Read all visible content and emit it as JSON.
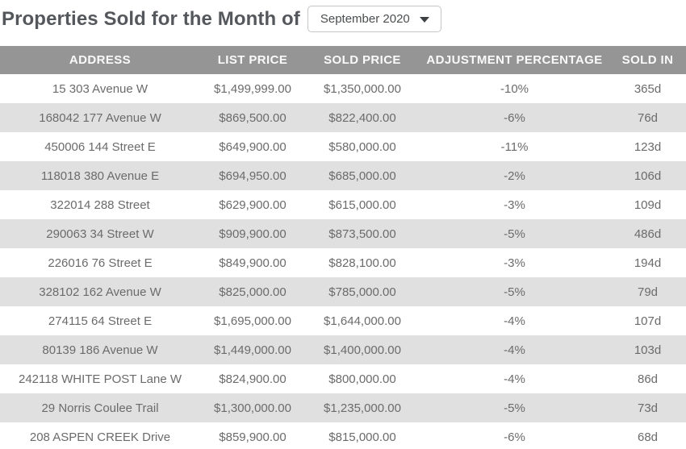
{
  "page": {
    "title": "Properties Sold for the Month of"
  },
  "month_selector": {
    "selected_value": "September 2020",
    "icon": "chevron-down-icon"
  },
  "table": {
    "columns": [
      "ADDRESS",
      "LIST PRICE",
      "SOLD PRICE",
      "ADJUSTMENT PERCENTAGE",
      "SOLD IN"
    ],
    "rows": [
      {
        "address": "15 303 Avenue W",
        "list_price": "$1,499,999.00",
        "sold_price": "$1,350,000.00",
        "adjustment_percentage": "-10%",
        "sold_in": "365d"
      },
      {
        "address": "168042 177 Avenue W",
        "list_price": "$869,500.00",
        "sold_price": "$822,400.00",
        "adjustment_percentage": "-6%",
        "sold_in": "76d"
      },
      {
        "address": "450006 144 Street E",
        "list_price": "$649,900.00",
        "sold_price": "$580,000.00",
        "adjustment_percentage": "-11%",
        "sold_in": "123d"
      },
      {
        "address": "118018 380 Avenue E",
        "list_price": "$694,950.00",
        "sold_price": "$685,000.00",
        "adjustment_percentage": "-2%",
        "sold_in": "106d"
      },
      {
        "address": "322014 288 Street",
        "list_price": "$629,900.00",
        "sold_price": "$615,000.00",
        "adjustment_percentage": "-3%",
        "sold_in": "109d"
      },
      {
        "address": "290063 34 Street W",
        "list_price": "$909,900.00",
        "sold_price": "$873,500.00",
        "adjustment_percentage": "-5%",
        "sold_in": "486d"
      },
      {
        "address": "226016 76 Street E",
        "list_price": "$849,900.00",
        "sold_price": "$828,100.00",
        "adjustment_percentage": "-3%",
        "sold_in": "194d"
      },
      {
        "address": "328102 162 Avenue W",
        "list_price": "$825,000.00",
        "sold_price": "$785,000.00",
        "adjustment_percentage": "-5%",
        "sold_in": "79d"
      },
      {
        "address": "274115 64 Street E",
        "list_price": "$1,695,000.00",
        "sold_price": "$1,644,000.00",
        "adjustment_percentage": "-4%",
        "sold_in": "107d"
      },
      {
        "address": "80139 186 Avenue W",
        "list_price": "$1,449,000.00",
        "sold_price": "$1,400,000.00",
        "adjustment_percentage": "-4%",
        "sold_in": "103d"
      },
      {
        "address": "242118 WHITE POST Lane W",
        "list_price": "$824,900.00",
        "sold_price": "$800,000.00",
        "adjustment_percentage": "-4%",
        "sold_in": "86d"
      },
      {
        "address": "29 Norris Coulee Trail",
        "list_price": "$1,300,000.00",
        "sold_price": "$1,235,000.00",
        "adjustment_percentage": "-5%",
        "sold_in": "73d"
      },
      {
        "address": "208 ASPEN CREEK Drive",
        "list_price": "$859,900.00",
        "sold_price": "$815,000.00",
        "adjustment_percentage": "-6%",
        "sold_in": "68d"
      }
    ]
  },
  "colors": {
    "title_text": "#54585c",
    "header_bg": "#959595",
    "header_text": "#fafafa",
    "stripe_bg": "#e0e0e0",
    "row_text": "#6b6b6b",
    "dropdown_border": "#c6c6c6",
    "dropdown_text": "#4b4e50",
    "caret": "#3e4144"
  }
}
